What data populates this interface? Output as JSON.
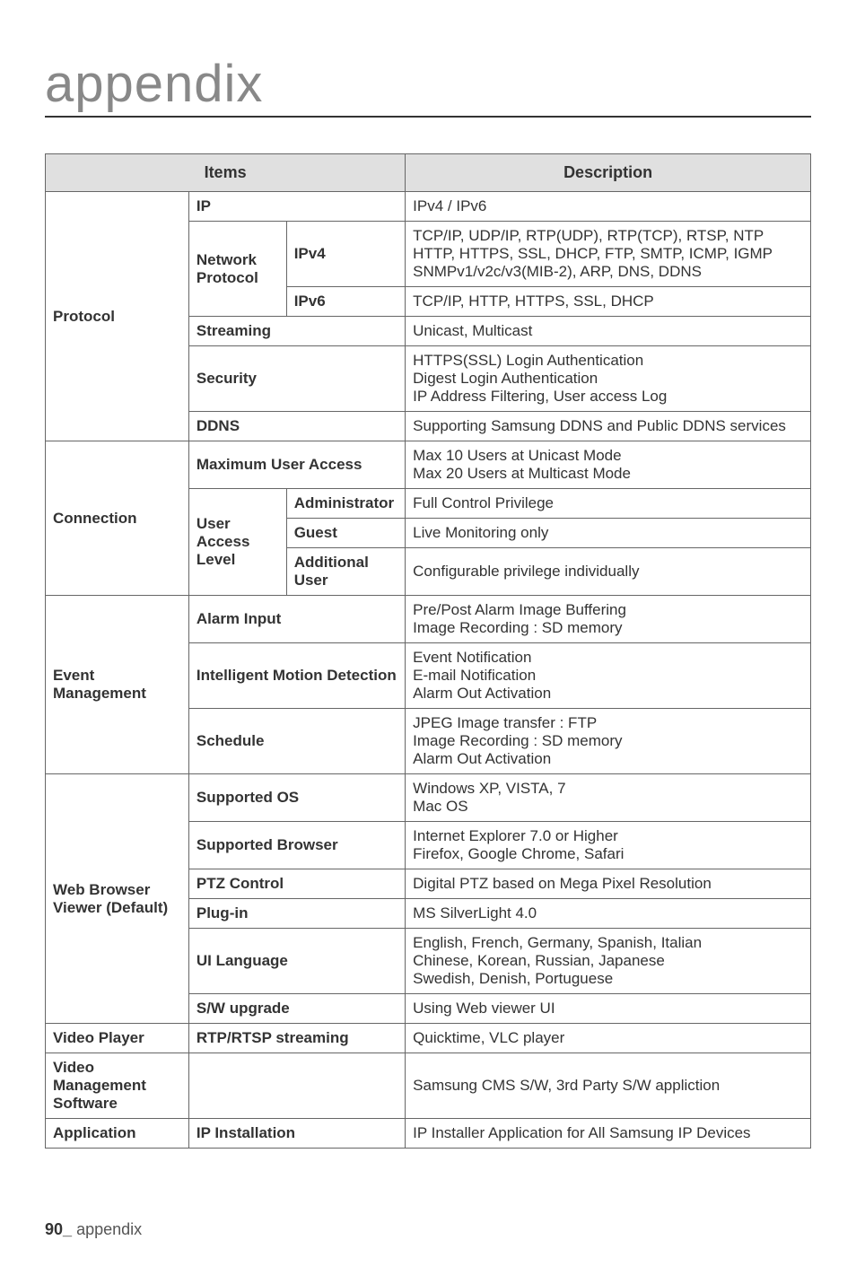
{
  "page": {
    "chapter_title": "appendix",
    "footer_pagenum": "90_",
    "footer_text": "appendix"
  },
  "headers": {
    "items": "Items",
    "description": "Description"
  },
  "rows": {
    "protocol": {
      "label": "Protocol",
      "ip": {
        "label": "IP",
        "desc": "IPv4 / IPv6"
      },
      "network_protocol": {
        "label": "Network Protocol",
        "ipv4": {
          "label": "IPv4",
          "desc": "TCP/IP, UDP/IP, RTP(UDP), RTP(TCP), RTSP, NTP HTTP, HTTPS, SSL, DHCP, FTP, SMTP, ICMP, IGMP SNMPv1/v2c/v3(MIB-2), ARP, DNS, DDNS"
        },
        "ipv6": {
          "label": "IPv6",
          "desc": "TCP/IP, HTTP, HTTPS, SSL, DHCP"
        }
      },
      "streaming": {
        "label": "Streaming",
        "desc": "Unicast, Multicast"
      },
      "security": {
        "label": "Security",
        "desc": "HTTPS(SSL) Login Authentication\nDigest Login Authentication\nIP Address Filtering, User access Log"
      },
      "ddns": {
        "label": "DDNS",
        "desc": "Supporting Samsung DDNS and Public DDNS services"
      }
    },
    "connection": {
      "label": "Connection",
      "max_user_access": {
        "label": "Maximum User Access",
        "desc": "Max 10 Users at Unicast Mode\nMax 20 Users at Multicast Mode"
      },
      "user_access_level": {
        "label": "User Access Level",
        "admin": {
          "label": "Administrator",
          "desc": "Full Control Privilege"
        },
        "guest": {
          "label": "Guest",
          "desc": "Live Monitoring only"
        },
        "additional": {
          "label": "Additional User",
          "desc": "Configurable privilege individually"
        }
      }
    },
    "event": {
      "label": "Event Management",
      "alarm_input": {
        "label": "Alarm Input",
        "desc": "Pre/Post Alarm Image Buffering\nImage Recording : SD memory"
      },
      "imd": {
        "label": "Intelligent Motion Detection",
        "desc": "Event Notification\nE-mail Notification\nAlarm Out Activation"
      },
      "schedule": {
        "label": "Schedule",
        "desc": "JPEG Image transfer : FTP\nImage Recording : SD memory\nAlarm Out Activation"
      }
    },
    "web": {
      "label": "Web Browser Viewer (Default)",
      "os": {
        "label": "Supported OS",
        "desc": "Windows XP, VISTA, 7\nMac OS"
      },
      "browser": {
        "label": "Supported Browser",
        "desc": "Internet Explorer 7.0 or Higher\nFirefox, Google Chrome, Safari"
      },
      "ptz": {
        "label": "PTZ Control",
        "desc": "Digital PTZ based on Mega Pixel Resolution"
      },
      "plugin": {
        "label": "Plug-in",
        "desc": "MS SilverLight 4.0"
      },
      "lang": {
        "label": "UI Language",
        "desc": "English, French, Germany, Spanish, Italian\nChinese, Korean, Russian, Japanese\nSwedish, Denish, Portuguese"
      },
      "upgrade": {
        "label": "S/W upgrade",
        "desc": "Using Web viewer UI"
      }
    },
    "video_player": {
      "label": "Video Player",
      "sub": "RTP/RTSP streaming",
      "desc": "Quicktime, VLC player"
    },
    "vms": {
      "label": "Video Management Software",
      "desc": "Samsung CMS S/W, 3rd Party S/W appliction"
    },
    "application": {
      "label": "Application",
      "sub": "IP Installation",
      "desc": "IP Installer Application for All Samsung IP Devices"
    }
  },
  "style": {
    "header_bg": "#e0e0e0",
    "border_color": "#666666",
    "title_color": "#888888"
  }
}
